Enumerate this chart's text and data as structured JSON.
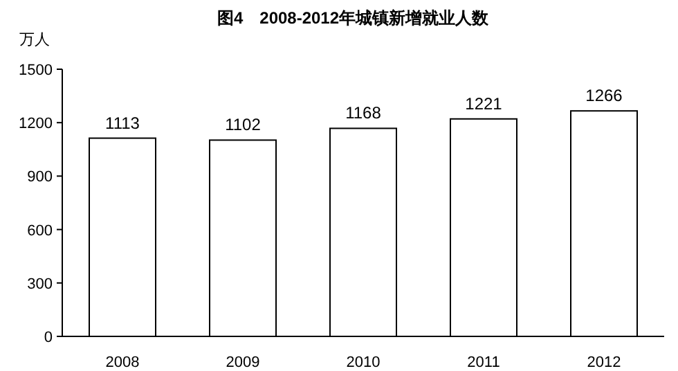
{
  "chart_data": {
    "type": "bar",
    "title": "图4　2008-2012年城镇新增就业人数",
    "ylabel": "万人",
    "categories": [
      "2008",
      "2009",
      "2010",
      "2011",
      "2012"
    ],
    "values": [
      1113,
      1102,
      1168,
      1221,
      1266
    ],
    "color": "#ffffff",
    "ylim": [
      0,
      1500
    ],
    "yticks": [
      0,
      300,
      600,
      900,
      1200,
      1500
    ],
    "data_labels": true
  }
}
